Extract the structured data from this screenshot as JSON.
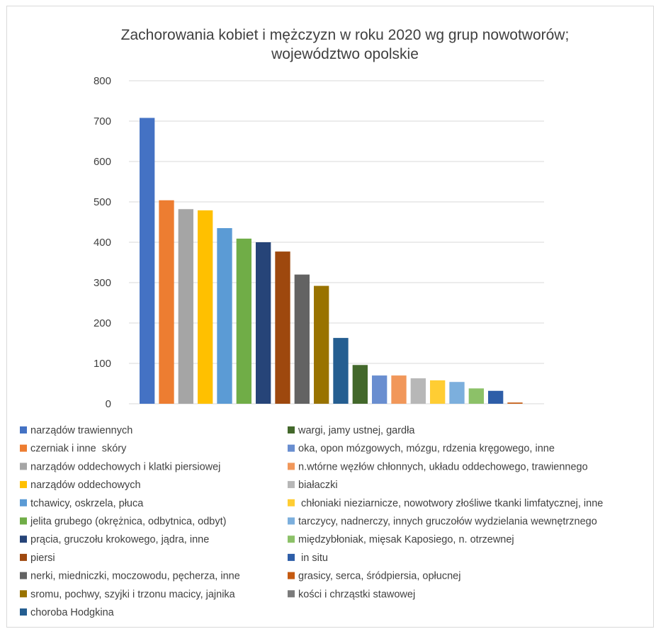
{
  "chart_data": {
    "type": "bar",
    "title": [
      "Zachorowania kobiet i mężczyzn w roku 2020 wg grup nowotworów;",
      "województwo opolskie"
    ],
    "xlabel": "",
    "ylabel": "",
    "ylim": [
      0,
      800
    ],
    "yticks": [
      "0",
      "100",
      "200",
      "300",
      "400",
      "500",
      "600",
      "700",
      "800"
    ],
    "grid": true,
    "legend": "bottom",
    "series": [
      {
        "name": "narządów trawiennych",
        "value": 708,
        "color": "#4472c4"
      },
      {
        "name": "czerniak i inne  skóry",
        "value": 504,
        "color": "#ed7d31"
      },
      {
        "name": "narządów oddechowych i klatki piersiowej",
        "value": 482,
        "color": "#a5a5a5"
      },
      {
        "name": "narządów oddechowych",
        "value": 479,
        "color": "#ffc000"
      },
      {
        "name": "tchawicy, oskrzela, płuca",
        "value": 435,
        "color": "#5b9bd5"
      },
      {
        "name": "jelita grubego (okrężnica, odbytnica, odbyt)",
        "value": 409,
        "color": "#70ad47"
      },
      {
        "name": "prącia, gruczołu krokowego, jądra, inne",
        "value": 400,
        "color": "#264478"
      },
      {
        "name": "piersi",
        "value": 377,
        "color": "#9e480e"
      },
      {
        "name": "nerki, miedniczki, moczowodu, pęcherza, inne",
        "value": 320,
        "color": "#636363"
      },
      {
        "name": "sromu, pochwy, szyjki i trzonu macicy, jajnika",
        "value": 292,
        "color": "#997300"
      },
      {
        "name": "choroba Hodgkina",
        "value": 163,
        "color": "#255e91"
      },
      {
        "name": "wargi, jamy ustnej, gardła",
        "value": 96,
        "color": "#43682b"
      },
      {
        "name": "oka, opon mózgowych, mózgu, rdzenia kręgowego, inne",
        "value": 70,
        "color": "#698ed0"
      },
      {
        "name": "n.wtórne węzłów chłonnych, układu oddechowego, trawiennego",
        "value": 70,
        "color": "#f1975a"
      },
      {
        "name": "białaczki",
        "value": 63,
        "color": "#b7b7b7"
      },
      {
        "name": " chłoniaki nieziarnicze, nowotwory złośliwe tkanki limfatycznej, inne",
        "value": 58,
        "color": "#ffcd33"
      },
      {
        "name": "tarczycy, nadnerczy, innych gruczołów wydzielania wewnętrznego",
        "value": 54,
        "color": "#7cafdd"
      },
      {
        "name": "międzybłoniak, mięsak Kaposiego, n. otrzewnej",
        "value": 38,
        "color": "#8cc168"
      },
      {
        "name": " in situ",
        "value": 32,
        "color": "#2e5ea8"
      },
      {
        "name": "grasicy, serca, śródpiersia, opłucnej",
        "value": 3,
        "color": "#c55a11"
      },
      {
        "name": "kości i chrząstki stawowej",
        "value": 0,
        "color": "#7b7b7b"
      }
    ]
  }
}
